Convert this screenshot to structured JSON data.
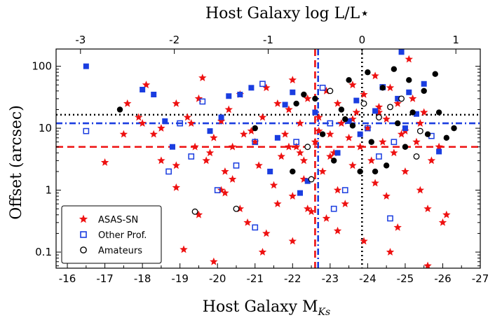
{
  "chart_data": {
    "type": "scatter",
    "title": "Host Galaxy log L/L⋆",
    "xlabel": "Host Galaxy M",
    "xlabel_sub": "Ks",
    "ylabel": "Offset (arcsec)",
    "y_scale": "log",
    "xlim": [
      -15.7,
      -27.0
    ],
    "ylim": [
      0.055,
      190
    ],
    "bottom_ticks": [
      {
        "value": -16,
        "label": "-16"
      },
      {
        "value": -17,
        "label": "-17"
      },
      {
        "value": -18,
        "label": "-18"
      },
      {
        "value": -19,
        "label": "-19"
      },
      {
        "value": -20,
        "label": "-20"
      },
      {
        "value": -21,
        "label": "-21"
      },
      {
        "value": -22,
        "label": "-22"
      },
      {
        "value": -23,
        "label": "-23"
      },
      {
        "value": -24,
        "label": "-24"
      },
      {
        "value": -25,
        "label": "-25"
      },
      {
        "value": -26,
        "label": "-26"
      },
      {
        "value": -27,
        "label": "-27"
      }
    ],
    "top_ticks": [
      {
        "value": -3,
        "label": "-3",
        "mk": -16.35
      },
      {
        "value": -2,
        "label": "-2",
        "mk": -18.85
      },
      {
        "value": -1,
        "label": "-1",
        "mk": -21.35
      },
      {
        "value": 0,
        "label": "0",
        "mk": -23.85
      },
      {
        "value": 1,
        "label": "1",
        "mk": -26.35
      }
    ],
    "y_ticks": [
      {
        "value": 0.1,
        "label": "0.1"
      },
      {
        "value": 1,
        "label": "1"
      },
      {
        "value": 10,
        "label": "10"
      },
      {
        "value": 100,
        "label": "100"
      }
    ],
    "legend": {
      "position": "lower-left",
      "entries": [
        {
          "name": "ASAS-SN",
          "marker": "star"
        },
        {
          "name": "Other Prof.",
          "marker": "open-square"
        },
        {
          "name": "Amateurs",
          "marker": "open-circle"
        }
      ]
    },
    "reference_lines": [
      {
        "series": "ASAS-SN",
        "orientation": "horizontal",
        "value": 5.0,
        "style": "dashed",
        "color": "#ee1111"
      },
      {
        "series": "Other Prof.",
        "orientation": "horizontal",
        "value": 12.0,
        "style": "dashdot",
        "color": "#1a3de0"
      },
      {
        "series": "Amateurs",
        "orientation": "horizontal",
        "value": 16.5,
        "style": "dotted",
        "color": "#000000"
      },
      {
        "series": "ASAS-SN",
        "orientation": "vertical",
        "value": -22.6,
        "style": "dashed",
        "color": "#ee1111"
      },
      {
        "series": "Other Prof.",
        "orientation": "vertical",
        "value": -22.68,
        "style": "dashdot",
        "color": "#1a3de0"
      },
      {
        "series": "Amateurs",
        "orientation": "vertical",
        "value": -23.85,
        "style": "dotted",
        "color": "#000000"
      }
    ],
    "colors": {
      "asassn": "#ee1111",
      "prof": "#1a3de0",
      "amateur": "#000000"
    },
    "series": [
      {
        "name": "ASAS-SN",
        "key": "asassn",
        "points": [
          [
            -17.0,
            2.8
          ],
          [
            -17.5,
            8
          ],
          [
            -17.6,
            25
          ],
          [
            -17.9,
            15
          ],
          [
            -18.0,
            12
          ],
          [
            -18.1,
            50
          ],
          [
            -18.3,
            8
          ],
          [
            -18.5,
            3
          ],
          [
            -18.5,
            10
          ],
          [
            -18.9,
            25
          ],
          [
            -19.3,
            12
          ],
          [
            -19.5,
            30
          ],
          [
            -19.6,
            65
          ],
          [
            -19.2,
            15
          ],
          [
            -18.9,
            1.1
          ],
          [
            -18.9,
            2.5
          ],
          [
            -19.4,
            5
          ],
          [
            -19.7,
            3
          ],
          [
            -19.9,
            7
          ],
          [
            -19.1,
            0.11
          ],
          [
            -19.5,
            0.4
          ],
          [
            -19.9,
            0.07
          ],
          [
            -20.1,
            1
          ],
          [
            -20.2,
            2
          ],
          [
            -20.4,
            5
          ],
          [
            -20.1,
            13
          ],
          [
            -20.3,
            20
          ],
          [
            -20.6,
            35
          ],
          [
            -20.2,
            0.9
          ],
          [
            -20.6,
            0.5
          ],
          [
            -20.8,
            0.3
          ],
          [
            -20.7,
            8
          ],
          [
            -21.0,
            6
          ],
          [
            -21.1,
            2.5
          ],
          [
            -21.2,
            15
          ],
          [
            -21.3,
            45
          ],
          [
            -21.3,
            0.2
          ],
          [
            -21.5,
            1.2
          ],
          [
            -21.2,
            0.1
          ],
          [
            -21.7,
            3.5
          ],
          [
            -21.8,
            8
          ],
          [
            -21.9,
            20
          ],
          [
            -22.0,
            60
          ],
          [
            -21.6,
            0.6
          ],
          [
            -22.0,
            0.8
          ],
          [
            -22.1,
            5
          ],
          [
            -22.2,
            12
          ],
          [
            -22.3,
            3
          ],
          [
            -22.4,
            30
          ],
          [
            -22.3,
            1.5
          ],
          [
            -22.5,
            0.45
          ],
          [
            -22.6,
            6
          ],
          [
            -22.7,
            15
          ],
          [
            -22.8,
            2
          ],
          [
            -22.9,
            40
          ],
          [
            -22.9,
            0.35
          ],
          [
            -23.0,
            8
          ],
          [
            -23.1,
            4
          ],
          [
            -23.2,
            25
          ],
          [
            -23.2,
            1
          ],
          [
            -23.3,
            12
          ],
          [
            -23.4,
            0.6
          ],
          [
            -23.5,
            7
          ],
          [
            -23.6,
            50
          ],
          [
            -23.6,
            2.5
          ],
          [
            -23.7,
            18
          ],
          [
            -23.8,
            5
          ],
          [
            -23.9,
            35
          ],
          [
            -23.9,
            0.15
          ],
          [
            -24.0,
            10
          ],
          [
            -24.1,
            3
          ],
          [
            -24.2,
            70
          ],
          [
            -24.2,
            1.3
          ],
          [
            -24.3,
            22
          ],
          [
            -24.4,
            6
          ],
          [
            -24.5,
            0.8
          ],
          [
            -24.5,
            14
          ],
          [
            -24.6,
            45
          ],
          [
            -24.7,
            4
          ],
          [
            -24.8,
            25
          ],
          [
            -24.8,
            0.25
          ],
          [
            -25.0,
            9
          ],
          [
            -25.0,
            2
          ],
          [
            -25.1,
            130
          ],
          [
            -25.2,
            30
          ],
          [
            -25.3,
            6
          ],
          [
            -25.4,
            1
          ],
          [
            -25.5,
            18
          ],
          [
            -25.6,
            0.06
          ],
          [
            -25.7,
            3
          ],
          [
            -25.6,
            0.5
          ],
          [
            -25.9,
            5
          ],
          [
            -26.0,
            0.3
          ],
          [
            -26.1,
            0.4
          ],
          [
            -25.4,
            12
          ],
          [
            -22.4,
            0.5
          ],
          [
            -24.6,
            0.1
          ],
          [
            -23.2,
            0.22
          ],
          [
            -22.0,
            0.15
          ],
          [
            -20.4,
            1.5
          ],
          [
            -19.8,
            4
          ],
          [
            -20.9,
            9
          ],
          [
            -21.6,
            25
          ],
          [
            -22.7,
            9
          ],
          [
            -23.6,
            14
          ],
          [
            -24.3,
            18
          ],
          [
            -24.9,
            8
          ],
          [
            -21.9,
            5
          ],
          [
            -22.2,
            4
          ],
          [
            -23.0,
            3.5
          ]
        ]
      },
      {
        "name": "Other Prof.",
        "key": "prof",
        "points": [
          [
            -16.5,
            100,
            "f"
          ],
          [
            -16.5,
            9,
            "o"
          ],
          [
            -18.0,
            42,
            "f"
          ],
          [
            -18.3,
            35,
            "f"
          ],
          [
            -18.6,
            13,
            "f"
          ],
          [
            -18.8,
            5,
            "f"
          ],
          [
            -19.0,
            12,
            "o"
          ],
          [
            -19.3,
            3.5,
            "o"
          ],
          [
            -19.6,
            27,
            "o"
          ],
          [
            -19.8,
            9,
            "f"
          ],
          [
            -20.1,
            15,
            "f"
          ],
          [
            -20.3,
            33,
            "f"
          ],
          [
            -20.5,
            2.5,
            "o"
          ],
          [
            -20.6,
            35,
            "f"
          ],
          [
            -20.9,
            45,
            "f"
          ],
          [
            -21.0,
            6,
            "o"
          ],
          [
            -21.2,
            52,
            "o"
          ],
          [
            -21.4,
            2,
            "f"
          ],
          [
            -21.6,
            7,
            "f"
          ],
          [
            -21.8,
            24,
            "f"
          ],
          [
            -22.0,
            38,
            "f"
          ],
          [
            -22.1,
            6,
            "o"
          ],
          [
            -22.2,
            0.9,
            "f"
          ],
          [
            -22.4,
            1.4,
            "f"
          ],
          [
            -22.6,
            18,
            "f"
          ],
          [
            -22.8,
            45,
            "o"
          ],
          [
            -23.0,
            12,
            "o"
          ],
          [
            -23.2,
            4,
            "f"
          ],
          [
            -23.4,
            1,
            "o"
          ],
          [
            -23.5,
            13,
            "f"
          ],
          [
            -23.7,
            28,
            "f"
          ],
          [
            -23.8,
            8,
            "f"
          ],
          [
            -24.0,
            10,
            "o"
          ],
          [
            -24.2,
            19,
            "f"
          ],
          [
            -24.3,
            3.5,
            "o"
          ],
          [
            -24.4,
            46,
            "o"
          ],
          [
            -24.6,
            0.35,
            "o"
          ],
          [
            -24.7,
            6,
            "o"
          ],
          [
            -24.8,
            30,
            "f"
          ],
          [
            -24.9,
            170,
            "f"
          ],
          [
            -25.0,
            10,
            "f"
          ],
          [
            -25.1,
            38,
            "f"
          ],
          [
            -25.3,
            17,
            "f"
          ],
          [
            -25.5,
            52,
            "f"
          ],
          [
            -25.7,
            7.5,
            "o"
          ],
          [
            -25.9,
            4.2,
            "f"
          ],
          [
            -20.0,
            1,
            "o"
          ],
          [
            -21.0,
            0.25,
            "o"
          ],
          [
            -18.7,
            2,
            "o"
          ],
          [
            -23.1,
            0.5,
            "o"
          ]
        ]
      },
      {
        "name": "Amateurs",
        "key": "amateur",
        "points": [
          [
            -17.4,
            20,
            "f"
          ],
          [
            -21.0,
            10,
            "f"
          ],
          [
            -22.0,
            2,
            "f"
          ],
          [
            -22.1,
            25,
            "f"
          ],
          [
            -22.3,
            35,
            "f"
          ],
          [
            -22.4,
            5,
            "o"
          ],
          [
            -22.6,
            30,
            "f"
          ],
          [
            -22.8,
            8,
            "f"
          ],
          [
            -23.0,
            40,
            "o"
          ],
          [
            -23.1,
            3,
            "f"
          ],
          [
            -23.3,
            20,
            "f"
          ],
          [
            -23.5,
            60,
            "f"
          ],
          [
            -23.6,
            11,
            "f"
          ],
          [
            -23.8,
            2,
            "f"
          ],
          [
            -23.9,
            25,
            "o"
          ],
          [
            -24.0,
            80,
            "f"
          ],
          [
            -24.1,
            6,
            "f"
          ],
          [
            -24.3,
            15,
            "o"
          ],
          [
            -24.4,
            45,
            "f"
          ],
          [
            -24.5,
            2.5,
            "f"
          ],
          [
            -24.7,
            90,
            "f"
          ],
          [
            -24.8,
            12,
            "f"
          ],
          [
            -24.9,
            30,
            "o"
          ],
          [
            -25.0,
            5,
            "f"
          ],
          [
            -25.1,
            60,
            "f"
          ],
          [
            -25.2,
            18,
            "f"
          ],
          [
            -25.3,
            3.5,
            "o"
          ],
          [
            -25.5,
            40,
            "f"
          ],
          [
            -25.6,
            8,
            "f"
          ],
          [
            -25.8,
            75,
            "f"
          ],
          [
            -25.9,
            18,
            "f"
          ],
          [
            -26.1,
            7,
            "f"
          ],
          [
            -24.2,
            2,
            "f"
          ],
          [
            -22.5,
            1.5,
            "o"
          ],
          [
            -20.5,
            0.5,
            "o"
          ],
          [
            -19.4,
            0.45,
            "o"
          ],
          [
            -26.3,
            10,
            "f"
          ],
          [
            -23.4,
            14,
            "f"
          ],
          [
            -24.6,
            22,
            "o"
          ],
          [
            -25.4,
            9,
            "o"
          ]
        ]
      }
    ]
  }
}
